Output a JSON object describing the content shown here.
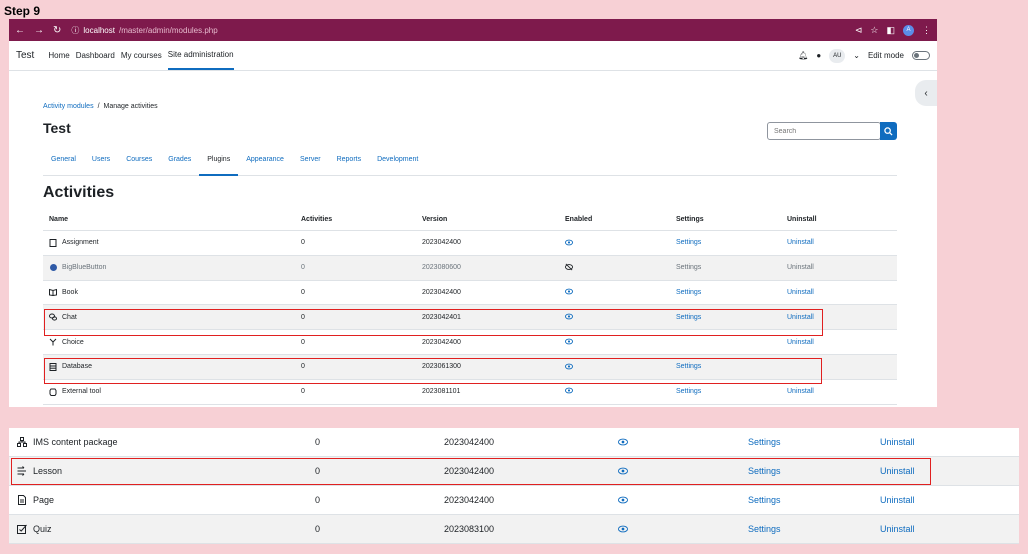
{
  "step_label": "Step 9",
  "browser": {
    "host": "localhost",
    "path": "/master/admin/modules.php",
    "profile_letter": "A"
  },
  "nav": {
    "brand": "Test",
    "links": [
      "Home",
      "Dashboard",
      "My courses",
      "Site administration"
    ],
    "user_initials": "AU",
    "edit_mode_label": "Edit mode"
  },
  "breadcrumb": {
    "parent": "Activity modules",
    "separator": "/",
    "current": "Manage activities"
  },
  "page_title": "Test",
  "search": {
    "placeholder": "Search"
  },
  "tabs": [
    "General",
    "Users",
    "Courses",
    "Grades",
    "Plugins",
    "Appearance",
    "Server",
    "Reports",
    "Development"
  ],
  "active_tab": "Plugins",
  "section_title": "Activities",
  "table": {
    "headers": [
      "Name",
      "Activities",
      "Version",
      "Enabled",
      "Settings",
      "Uninstall"
    ],
    "rows": [
      {
        "name": "Assignment",
        "icon": "assignment-icon",
        "activities": "0",
        "version": "2023042400",
        "enabled": true,
        "settings": "Settings",
        "uninstall": "Uninstall"
      },
      {
        "name": "BigBlueButton",
        "icon": "bigbluebutton-icon",
        "activities": "0",
        "version": "2023080600",
        "enabled": false,
        "settings": "Settings",
        "uninstall": "Uninstall"
      },
      {
        "name": "Book",
        "icon": "book-icon",
        "activities": "0",
        "version": "2023042400",
        "enabled": true,
        "settings": "Settings",
        "uninstall": "Uninstall"
      },
      {
        "name": "Chat",
        "icon": "chat-icon",
        "activities": "0",
        "version": "2023042401",
        "enabled": true,
        "settings": "Settings",
        "uninstall": "Uninstall"
      },
      {
        "name": "Choice",
        "icon": "choice-icon",
        "activities": "0",
        "version": "2023042400",
        "enabled": true,
        "settings": "",
        "uninstall": "Uninstall"
      },
      {
        "name": "Database",
        "icon": "database-icon",
        "activities": "0",
        "version": "2023061300",
        "enabled": true,
        "settings": "Settings",
        "uninstall": ""
      },
      {
        "name": "External tool",
        "icon": "external-tool-icon",
        "activities": "0",
        "version": "2023081101",
        "enabled": true,
        "settings": "Settings",
        "uninstall": "Uninstall"
      }
    ]
  },
  "table2": {
    "rows": [
      {
        "name": "IMS content package",
        "icon": "ims-package-icon",
        "activities": "0",
        "version": "2023042400",
        "enabled": true,
        "settings": "Settings",
        "uninstall": "Uninstall"
      },
      {
        "name": "Lesson",
        "icon": "lesson-icon",
        "activities": "0",
        "version": "2023042400",
        "enabled": true,
        "settings": "Settings",
        "uninstall": "Uninstall"
      },
      {
        "name": "Page",
        "icon": "page-icon",
        "activities": "0",
        "version": "2023042400",
        "enabled": true,
        "settings": "Settings",
        "uninstall": "Uninstall"
      },
      {
        "name": "Quiz",
        "icon": "quiz-icon",
        "activities": "0",
        "version": "2023083100",
        "enabled": true,
        "settings": "Settings",
        "uninstall": "Uninstall"
      }
    ]
  },
  "colors": {
    "accent": "#0f6cbf",
    "browser_bar": "#7e1a4c",
    "highlight": "#e02020",
    "background": "#f7d0d5"
  }
}
